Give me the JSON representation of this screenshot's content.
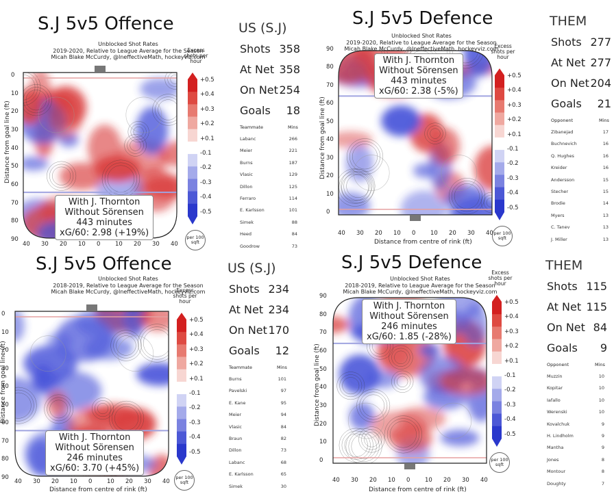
{
  "colors": {
    "red": "#d62b2b",
    "blue": "#3a46d6",
    "rink": "#222222"
  },
  "colorbar": {
    "title": "Excess shots per hour",
    "ticks": [
      "+0.5",
      "+0.4",
      "+0.3",
      "+0.2",
      "+0.1",
      "-0.1",
      "-0.2",
      "-0.3",
      "-0.4",
      "-0.5"
    ],
    "unit": "per 100 sqft"
  },
  "subtitle_line1": "Unblocked Shot Rates",
  "subtitle_line3": "Micah Blake McCurdy, @IneffectiveMath, hockeyviz.com",
  "y_label": "Distance from goal line (ft)",
  "x_label": "Distance from centre of rink (ft)",
  "panels": {
    "tl": {
      "title": "S.J 5v5 Offence",
      "season": "2019-2020, Relative to League Average for the Season",
      "with": "With J. Thornton",
      "without": "Without Sörensen",
      "minutes": "443 minutes",
      "xg": "xG/60: 2.98 (+19%)",
      "side_head": "US (S.J)",
      "shots_l": "Shots",
      "shots": "358",
      "atnet_l": "At Net",
      "atnet": "358",
      "onnet_l": "On Net",
      "onnet": "254",
      "goals_l": "Goals",
      "goals": "18",
      "list_h1": "Teammate",
      "list_h2": "Mins",
      "list": [
        [
          "Labanc",
          "266"
        ],
        [
          "Meier",
          "221"
        ],
        [
          "Burns",
          "187"
        ],
        [
          "Vlasic",
          "129"
        ],
        [
          "Dillon",
          "125"
        ],
        [
          "Ferraro",
          "114"
        ],
        [
          "E. Karlsson",
          "101"
        ],
        [
          "Simek",
          "88"
        ],
        [
          "Heed",
          "84"
        ],
        [
          "Goodrow",
          "73"
        ]
      ]
    },
    "tr": {
      "title": "S.J 5v5 Defence",
      "season": "2019-2020, Relative to League Average for the Season",
      "with": "With J. Thornton",
      "without": "Without Sörensen",
      "minutes": "443 minutes",
      "xg": "xG/60: 2.38 (-5%)",
      "side_head": "THEM",
      "shots_l": "Shots",
      "shots": "277",
      "atnet_l": "At Net",
      "atnet": "277",
      "onnet_l": "On Net",
      "onnet": "204",
      "goals_l": "Goals",
      "goals": "21",
      "list_h1": "Opponent",
      "list_h2": "Mins",
      "list": [
        [
          "Zibanejad",
          "17"
        ],
        [
          "Buchnevich",
          "16"
        ],
        [
          "Q. Hughes",
          "16"
        ],
        [
          "Kreider",
          "16"
        ],
        [
          "Andersson",
          "15"
        ],
        [
          "Stecher",
          "15"
        ],
        [
          "Brodie",
          "14"
        ],
        [
          "Myers",
          "13"
        ],
        [
          "C. Tanev",
          "13"
        ],
        [
          "J. Miller",
          "13"
        ]
      ]
    },
    "bl": {
      "title": "S.J 5v5 Offence",
      "season": "2018-2019, Relative to League Average for the Season",
      "with": "With J. Thornton",
      "without": "Without Sörensen",
      "minutes": "246 minutes",
      "xg": "xG/60: 3.70 (+45%)",
      "side_head": "US (S.J)",
      "shots_l": "Shots",
      "shots": "234",
      "atnet_l": "At Net",
      "atnet": "234",
      "onnet_l": "On Net",
      "onnet": "170",
      "goals_l": "Goals",
      "goals": "12",
      "list_h1": "Teammate",
      "list_h2": "Mins",
      "list": [
        [
          "Burns",
          "101"
        ],
        [
          "Pavelski",
          "97"
        ],
        [
          "E. Kane",
          "95"
        ],
        [
          "Meier",
          "94"
        ],
        [
          "Vlasic",
          "84"
        ],
        [
          "Braun",
          "82"
        ],
        [
          "Dillon",
          "73"
        ],
        [
          "Labanc",
          "68"
        ],
        [
          "E. Karlsson",
          "65"
        ],
        [
          "Simek",
          "30"
        ]
      ]
    },
    "br": {
      "title": "S.J 5v5 Defence",
      "season": "2018-2019, Relative to League Average for the Season",
      "with": "With J. Thornton",
      "without": "Without Sörensen",
      "minutes": "246 minutes",
      "xg": "xG/60: 1.85 (-28%)",
      "side_head": "THEM",
      "shots_l": "Shots",
      "shots": "115",
      "atnet_l": "At Net",
      "atnet": "115",
      "onnet_l": "On Net",
      "onnet": "84",
      "goals_l": "Goals",
      "goals": "9",
      "list_h1": "Opponent",
      "list_h2": "Mins",
      "list": [
        [
          "Muzzin",
          "10"
        ],
        [
          "Kopitar",
          "10"
        ],
        [
          "Iafallo",
          "10"
        ],
        [
          "Werenski",
          "10"
        ],
        [
          "Kovalchuk",
          "9"
        ],
        [
          "H. Lindholm",
          "9"
        ],
        [
          "Mantha",
          "9"
        ],
        [
          "Jones",
          "8"
        ],
        [
          "Montour",
          "8"
        ],
        [
          "Doughty",
          "7"
        ]
      ]
    }
  },
  "chart_data": [
    {
      "type": "heatmap",
      "title": "S.J 5v5 Offence",
      "xlabel": "Distance from centre of rink (ft)",
      "ylabel": "Distance from goal line (ft)",
      "x_ticks": [
        "40",
        "30",
        "20",
        "10",
        "0",
        "10",
        "20",
        "30",
        "40"
      ],
      "y_ticks": [
        "0",
        "10",
        "20",
        "30",
        "40",
        "50",
        "60",
        "70",
        "80",
        "90"
      ],
      "colorbar_range": [
        -0.5,
        0.5
      ]
    },
    {
      "type": "heatmap",
      "title": "S.J 5v5 Defence",
      "xlabel": "Distance from centre of rink (ft)",
      "ylabel": "Distance from goal line (ft)",
      "x_ticks": [
        "40",
        "30",
        "20",
        "10",
        "0",
        "10",
        "20",
        "30",
        "40"
      ],
      "y_ticks": [
        "0",
        "10",
        "20",
        "30",
        "40",
        "50",
        "60",
        "70",
        "80",
        "90"
      ],
      "colorbar_range": [
        -0.5,
        0.5
      ]
    },
    {
      "type": "heatmap",
      "title": "S.J 5v5 Offence",
      "xlabel": "Distance from centre of rink (ft)",
      "ylabel": "Distance from goal line (ft)",
      "x_ticks": [
        "40",
        "30",
        "20",
        "10",
        "0",
        "10",
        "20",
        "30",
        "40"
      ],
      "y_ticks": [
        "0",
        "10",
        "20",
        "30",
        "40",
        "50",
        "60",
        "70",
        "80",
        "90"
      ],
      "colorbar_range": [
        -0.5,
        0.5
      ]
    },
    {
      "type": "heatmap",
      "title": "S.J 5v5 Defence",
      "xlabel": "Distance from centre of rink (ft)",
      "ylabel": "Distance from goal line (ft)",
      "x_ticks": [
        "40",
        "30",
        "20",
        "10",
        "0",
        "10",
        "20",
        "30",
        "40"
      ],
      "y_ticks": [
        "0",
        "10",
        "20",
        "30",
        "40",
        "50",
        "60",
        "70",
        "80",
        "90"
      ],
      "colorbar_range": [
        -0.5,
        0.5
      ]
    }
  ]
}
